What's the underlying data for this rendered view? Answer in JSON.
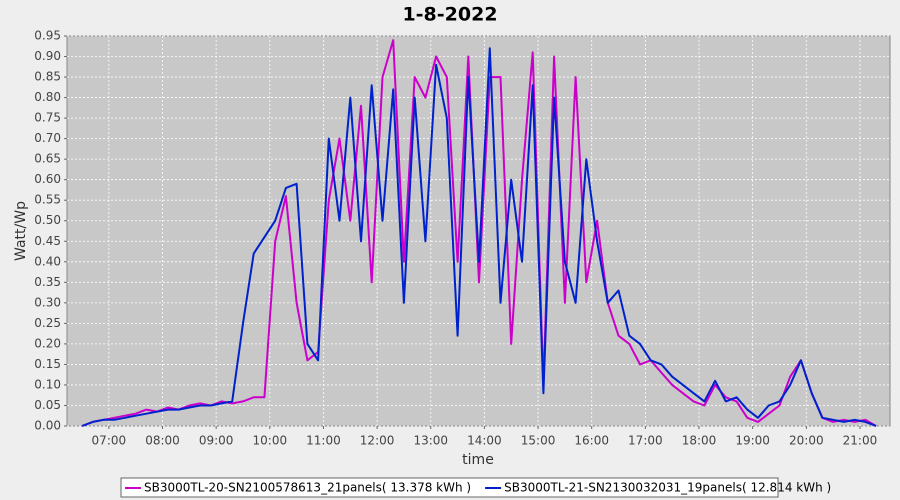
{
  "chart_data": {
    "type": "line",
    "title": "1-8-2022",
    "x_label": "time",
    "y_label": "Watt/Wp",
    "x": [
      6.5,
      6.7,
      6.9,
      7.1,
      7.3,
      7.5,
      7.7,
      7.9,
      8.1,
      8.3,
      8.5,
      8.7,
      8.9,
      9.1,
      9.3,
      9.5,
      9.7,
      9.9,
      10.1,
      10.3,
      10.5,
      10.7,
      10.9,
      11.1,
      11.3,
      11.5,
      11.7,
      11.9,
      12.1,
      12.3,
      12.5,
      12.7,
      12.9,
      13.1,
      13.3,
      13.5,
      13.7,
      13.9,
      14.1,
      14.3,
      14.5,
      14.7,
      14.9,
      15.1,
      15.3,
      15.5,
      15.7,
      15.9,
      16.1,
      16.3,
      16.5,
      16.7,
      16.9,
      17.1,
      17.3,
      17.5,
      17.7,
      17.9,
      18.1,
      18.3,
      18.5,
      18.7,
      18.9,
      19.1,
      19.3,
      19.5,
      19.7,
      19.9,
      20.1,
      20.3,
      20.5,
      20.7,
      20.9,
      21.1,
      21.3
    ],
    "series": [
      {
        "name": "SB3000TL-20-SN2100578613_21panels( 13.378 kWh )",
        "color": "#cc00cc",
        "values": [
          0.0,
          0.01,
          0.015,
          0.02,
          0.025,
          0.03,
          0.04,
          0.035,
          0.045,
          0.04,
          0.05,
          0.055,
          0.05,
          0.06,
          0.055,
          0.06,
          0.07,
          0.07,
          0.45,
          0.56,
          0.3,
          0.16,
          0.18,
          0.55,
          0.7,
          0.5,
          0.78,
          0.35,
          0.85,
          0.94,
          0.4,
          0.85,
          0.8,
          0.9,
          0.85,
          0.4,
          0.9,
          0.35,
          0.85,
          0.85,
          0.2,
          0.6,
          0.91,
          0.1,
          0.9,
          0.3,
          0.85,
          0.35,
          0.5,
          0.3,
          0.22,
          0.2,
          0.15,
          0.16,
          0.13,
          0.1,
          0.08,
          0.06,
          0.05,
          0.1,
          0.07,
          0.06,
          0.02,
          0.01,
          0.03,
          0.05,
          0.12,
          0.16,
          0.08,
          0.02,
          0.01,
          0.015,
          0.01,
          0.015,
          0.0
        ]
      },
      {
        "name": "SB3000TL-21-SN2130032031_19panels( 12.814 kWh )",
        "color": "#0022cc",
        "values": [
          0.0,
          0.01,
          0.015,
          0.015,
          0.02,
          0.025,
          0.03,
          0.035,
          0.04,
          0.04,
          0.045,
          0.05,
          0.05,
          0.055,
          0.06,
          0.25,
          0.42,
          0.46,
          0.5,
          0.58,
          0.59,
          0.2,
          0.16,
          0.7,
          0.5,
          0.8,
          0.45,
          0.83,
          0.5,
          0.82,
          0.3,
          0.8,
          0.45,
          0.88,
          0.75,
          0.22,
          0.85,
          0.4,
          0.92,
          0.3,
          0.6,
          0.4,
          0.83,
          0.08,
          0.8,
          0.4,
          0.3,
          0.65,
          0.45,
          0.3,
          0.33,
          0.22,
          0.2,
          0.16,
          0.15,
          0.12,
          0.1,
          0.08,
          0.06,
          0.11,
          0.06,
          0.07,
          0.04,
          0.02,
          0.05,
          0.06,
          0.1,
          0.16,
          0.08,
          0.02,
          0.015,
          0.01,
          0.015,
          0.01,
          0.0
        ]
      }
    ],
    "xlim": [
      6.22,
      21.56
    ],
    "xticks": [
      {
        "value": 7,
        "label": "07:00"
      },
      {
        "value": 8,
        "label": "08:00"
      },
      {
        "value": 9,
        "label": "09:00"
      },
      {
        "value": 10,
        "label": "10:00"
      },
      {
        "value": 11,
        "label": "11:00"
      },
      {
        "value": 12,
        "label": "12:00"
      },
      {
        "value": 13,
        "label": "13:00"
      },
      {
        "value": 14,
        "label": "14:00"
      },
      {
        "value": 15,
        "label": "15:00"
      },
      {
        "value": 16,
        "label": "16:00"
      },
      {
        "value": 17,
        "label": "17:00"
      },
      {
        "value": 18,
        "label": "18:00"
      },
      {
        "value": 19,
        "label": "19:00"
      },
      {
        "value": 20,
        "label": "20:00"
      },
      {
        "value": 21,
        "label": "21:00"
      }
    ],
    "ylim": [
      0,
      0.95
    ],
    "yticks": [
      {
        "value": 0,
        "label": "0.00"
      },
      {
        "value": 0.05,
        "label": "0.05"
      },
      {
        "value": 0.1,
        "label": "0.10"
      },
      {
        "value": 0.15,
        "label": "0.15"
      },
      {
        "value": 0.2,
        "label": "0.20"
      },
      {
        "value": 0.25,
        "label": "0.25"
      },
      {
        "value": 0.3,
        "label": "0.30"
      },
      {
        "value": 0.35,
        "label": "0.35"
      },
      {
        "value": 0.4,
        "label": "0.40"
      },
      {
        "value": 0.45,
        "label": "0.45"
      },
      {
        "value": 0.5,
        "label": "0.50"
      },
      {
        "value": 0.55,
        "label": "0.55"
      },
      {
        "value": 0.6,
        "label": "0.60"
      },
      {
        "value": 0.65,
        "label": "0.65"
      },
      {
        "value": 0.7,
        "label": "0.70"
      },
      {
        "value": 0.75,
        "label": "0.75"
      },
      {
        "value": 0.8,
        "label": "0.80"
      },
      {
        "value": 0.85,
        "label": "0.85"
      },
      {
        "value": 0.9,
        "label": "0.90"
      },
      {
        "value": 0.95,
        "label": "0.95"
      }
    ],
    "grid": true,
    "legend": "bottom"
  }
}
